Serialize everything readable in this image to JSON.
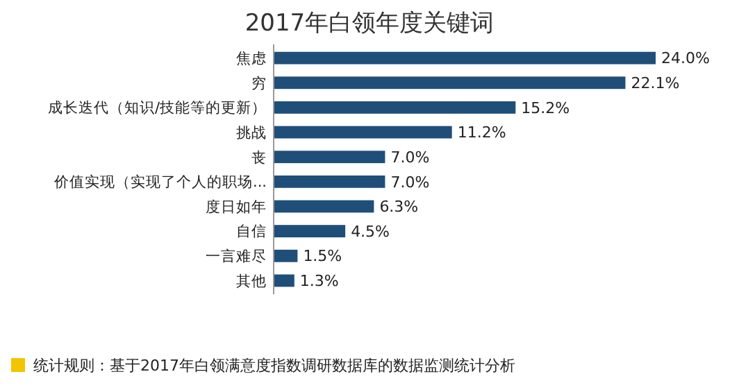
{
  "chart_data": {
    "type": "bar",
    "orientation": "horizontal",
    "title": "2017年白领年度关键词",
    "categories": [
      "焦虑",
      "穷",
      "成长迭代（知识/技能等的更新）",
      "挑战",
      "丧",
      "价值实现（实现了个人的职场...",
      "度日如年",
      "自信",
      "一言难尽",
      "其他"
    ],
    "values": [
      24.0,
      22.1,
      15.2,
      11.2,
      7.0,
      7.0,
      6.3,
      4.5,
      1.5,
      1.3
    ],
    "value_labels": [
      "24.0%",
      "22.1%",
      "15.2%",
      "11.2%",
      "7.0%",
      "7.0%",
      "6.3%",
      "4.5%",
      "1.5%",
      "1.3%"
    ],
    "color": "#1f4e79",
    "annotations": [
      "统计规则：基于2017年白领满意度指数调研数据库的数据监测统计分析"
    ]
  }
}
